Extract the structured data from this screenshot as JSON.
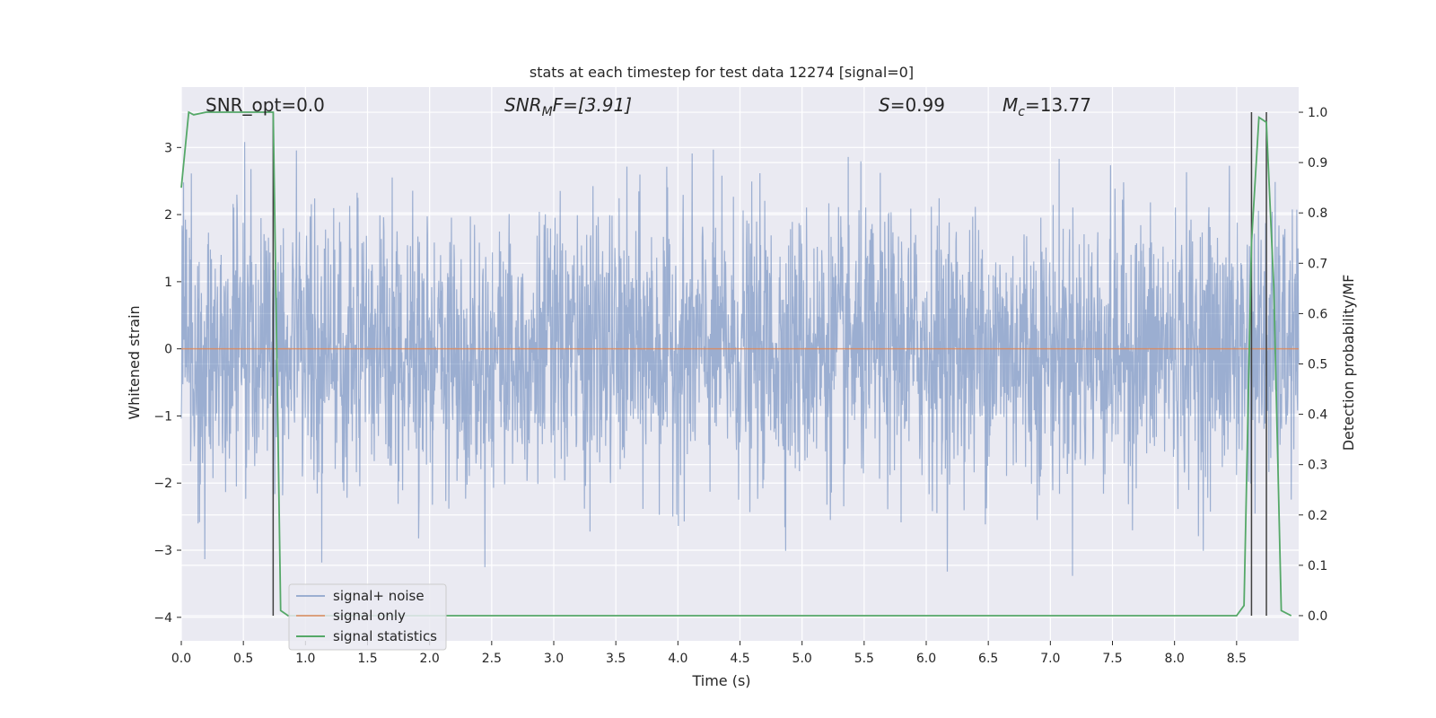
{
  "chart_data": {
    "type": "line",
    "title": "stats at each timestep for test data 12274 [signal=0]",
    "xlabel": "Time (s)",
    "ylabel": "Whitened strain",
    "ylabel_right": "Detection probability/MF",
    "xlim": [
      0.0,
      9.0
    ],
    "ylim": [
      -4.35,
      3.9
    ],
    "ylim_right": [
      -0.05,
      1.05
    ],
    "xticks": [
      0.0,
      0.5,
      1.0,
      1.5,
      2.0,
      2.5,
      3.0,
      3.5,
      4.0,
      4.5,
      5.0,
      5.5,
      6.0,
      6.5,
      7.0,
      7.5,
      8.0,
      8.5
    ],
    "xtick_labels": [
      "0.0",
      "0.5",
      "1.0",
      "1.5",
      "2.0",
      "2.5",
      "3.0",
      "3.5",
      "4.0",
      "4.5",
      "5.0",
      "5.5",
      "6.0",
      "6.5",
      "7.0",
      "7.5",
      "8.0",
      "8.5"
    ],
    "yticks": [
      -4,
      -3,
      -2,
      -1,
      0,
      1,
      2,
      3
    ],
    "ytick_labels": [
      "−4",
      "−3",
      "−2",
      "−1",
      "0",
      "1",
      "2",
      "3"
    ],
    "yticks_right": [
      0.0,
      0.1,
      0.2,
      0.3,
      0.4,
      0.5,
      0.6,
      0.7,
      0.8,
      0.9,
      1.0
    ],
    "ytick_labels_right": [
      "0.0",
      "0.1",
      "0.2",
      "0.3",
      "0.4",
      "0.5",
      "0.6",
      "0.7",
      "0.8",
      "0.9",
      "1.0"
    ],
    "grid": true,
    "legend_position": "lower-left",
    "annotations": {
      "snr_opt": "SNR_opt=0.0",
      "snr_mf_main": "SNR",
      "snr_mf_sub": "M",
      "snr_mf_tail": "F=[3.91]",
      "s_main": "S",
      "s_tail": "=0.99",
      "mc_main": "M",
      "mc_sub": "c",
      "mc_tail": "=13.77"
    },
    "series": [
      {
        "name": "signal+ noise",
        "color": "#4c72b0",
        "kind": "noise",
        "approx_sigma": 1.0,
        "approx_range": [
          -3.75,
          3.52
        ]
      },
      {
        "name": "signal only",
        "color": "#dd8452",
        "x": [
          0.0,
          9.0
        ],
        "y": [
          0.0,
          0.0
        ]
      },
      {
        "name": "signal statistics",
        "color": "#55a868",
        "axis": "right",
        "x": [
          0.0,
          0.06,
          0.1,
          0.2,
          0.3,
          0.5,
          0.7,
          0.74,
          0.8,
          0.86,
          0.92,
          1.0,
          8.5,
          8.56,
          8.62,
          8.68,
          8.74,
          8.8,
          8.86,
          8.94
        ],
        "y": [
          0.85,
          1.0,
          0.995,
          1.0,
          1.0,
          1.0,
          1.0,
          1.0,
          0.01,
          0.0,
          0.0,
          0.0,
          0.0,
          0.02,
          0.74,
          0.99,
          0.98,
          0.65,
          0.01,
          0.0
        ]
      }
    ],
    "vlines": [
      {
        "x": 0.74,
        "color": "#404040"
      },
      {
        "x": 8.62,
        "color": "#404040"
      },
      {
        "x": 8.74,
        "color": "#404040"
      }
    ]
  }
}
